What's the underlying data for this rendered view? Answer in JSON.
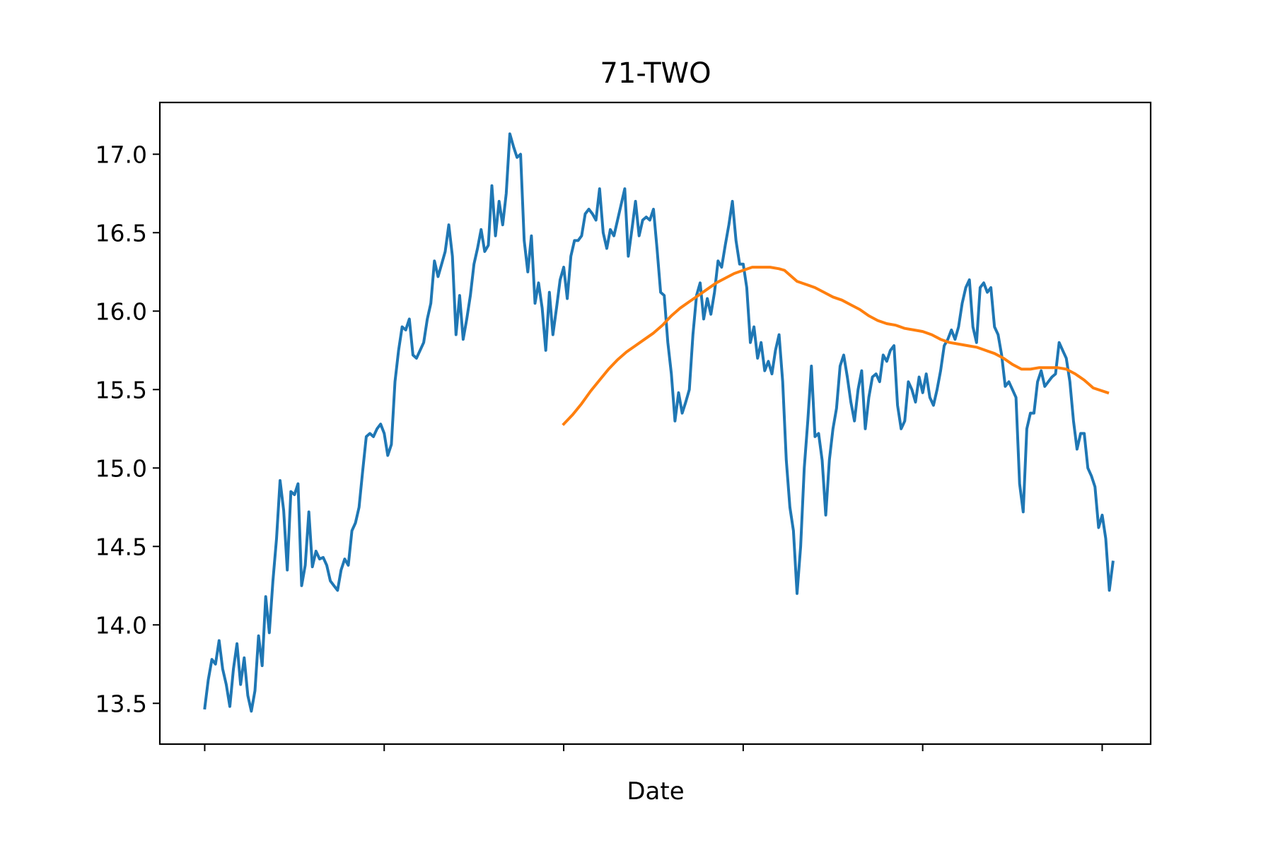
{
  "chart_data": {
    "type": "line",
    "title": "71-TWO",
    "xlabel": "Date",
    "ylabel": "",
    "ylim": [
      13.24,
      17.33
    ],
    "xlim": [
      -25,
      527
    ],
    "y_ticks": [
      {
        "value": 13.5,
        "label": "13.5"
      },
      {
        "value": 14.0,
        "label": "14.0"
      },
      {
        "value": 14.5,
        "label": "14.5"
      },
      {
        "value": 15.0,
        "label": "15.0"
      },
      {
        "value": 15.5,
        "label": "15.5"
      },
      {
        "value": 16.0,
        "label": "16.0"
      },
      {
        "value": 16.5,
        "label": "16.5"
      },
      {
        "value": 17.0,
        "label": "17.0"
      }
    ],
    "x_ticks": [
      0,
      100,
      200,
      300,
      400,
      500
    ],
    "grid": false,
    "colors": {
      "price": "#1f77b4",
      "moving_average": "#ff7f0e"
    },
    "series": [
      {
        "key": "price",
        "color": "#1f77b4",
        "points": [
          [
            0,
            13.47
          ],
          [
            2,
            13.65
          ],
          [
            4,
            13.78
          ],
          [
            6,
            13.75
          ],
          [
            8,
            13.9
          ],
          [
            10,
            13.72
          ],
          [
            12,
            13.62
          ],
          [
            14,
            13.48
          ],
          [
            16,
            13.72
          ],
          [
            18,
            13.88
          ],
          [
            20,
            13.62
          ],
          [
            22,
            13.79
          ],
          [
            24,
            13.55
          ],
          [
            26,
            13.45
          ],
          [
            28,
            13.58
          ],
          [
            30,
            13.93
          ],
          [
            32,
            13.74
          ],
          [
            34,
            14.18
          ],
          [
            36,
            13.95
          ],
          [
            38,
            14.28
          ],
          [
            40,
            14.55
          ],
          [
            42,
            14.92
          ],
          [
            44,
            14.73
          ],
          [
            46,
            14.35
          ],
          [
            48,
            14.85
          ],
          [
            50,
            14.83
          ],
          [
            52,
            14.9
          ],
          [
            54,
            14.25
          ],
          [
            56,
            14.38
          ],
          [
            58,
            14.72
          ],
          [
            60,
            14.37
          ],
          [
            62,
            14.47
          ],
          [
            64,
            14.42
          ],
          [
            66,
            14.43
          ],
          [
            68,
            14.38
          ],
          [
            70,
            14.28
          ],
          [
            72,
            14.25
          ],
          [
            74,
            14.22
          ],
          [
            76,
            14.35
          ],
          [
            78,
            14.42
          ],
          [
            80,
            14.38
          ],
          [
            82,
            14.6
          ],
          [
            84,
            14.65
          ],
          [
            86,
            14.75
          ],
          [
            88,
            14.98
          ],
          [
            90,
            15.2
          ],
          [
            92,
            15.22
          ],
          [
            94,
            15.2
          ],
          [
            96,
            15.25
          ],
          [
            98,
            15.28
          ],
          [
            100,
            15.22
          ],
          [
            102,
            15.08
          ],
          [
            104,
            15.15
          ],
          [
            106,
            15.55
          ],
          [
            108,
            15.75
          ],
          [
            110,
            15.9
          ],
          [
            112,
            15.88
          ],
          [
            114,
            15.95
          ],
          [
            116,
            15.72
          ],
          [
            118,
            15.7
          ],
          [
            120,
            15.75
          ],
          [
            122,
            15.8
          ],
          [
            124,
            15.95
          ],
          [
            126,
            16.05
          ],
          [
            128,
            16.32
          ],
          [
            130,
            16.22
          ],
          [
            132,
            16.3
          ],
          [
            134,
            16.38
          ],
          [
            136,
            16.55
          ],
          [
            138,
            16.35
          ],
          [
            140,
            15.85
          ],
          [
            142,
            16.1
          ],
          [
            144,
            15.82
          ],
          [
            146,
            15.95
          ],
          [
            148,
            16.1
          ],
          [
            150,
            16.3
          ],
          [
            152,
            16.4
          ],
          [
            154,
            16.52
          ],
          [
            156,
            16.38
          ],
          [
            158,
            16.42
          ],
          [
            160,
            16.8
          ],
          [
            162,
            16.48
          ],
          [
            164,
            16.7
          ],
          [
            166,
            16.55
          ],
          [
            168,
            16.75
          ],
          [
            170,
            17.13
          ],
          [
            172,
            17.05
          ],
          [
            174,
            16.98
          ],
          [
            176,
            17.0
          ],
          [
            178,
            16.45
          ],
          [
            180,
            16.25
          ],
          [
            182,
            16.48
          ],
          [
            184,
            16.05
          ],
          [
            186,
            16.18
          ],
          [
            188,
            16.02
          ],
          [
            190,
            15.75
          ],
          [
            192,
            16.12
          ],
          [
            194,
            15.85
          ],
          [
            196,
            16.02
          ],
          [
            198,
            16.2
          ],
          [
            200,
            16.28
          ],
          [
            202,
            16.08
          ],
          [
            204,
            16.35
          ],
          [
            206,
            16.45
          ],
          [
            208,
            16.45
          ],
          [
            210,
            16.48
          ],
          [
            212,
            16.62
          ],
          [
            214,
            16.65
          ],
          [
            216,
            16.62
          ],
          [
            218,
            16.58
          ],
          [
            220,
            16.78
          ],
          [
            222,
            16.5
          ],
          [
            224,
            16.4
          ],
          [
            226,
            16.52
          ],
          [
            228,
            16.48
          ],
          [
            230,
            16.58
          ],
          [
            232,
            16.68
          ],
          [
            234,
            16.78
          ],
          [
            236,
            16.35
          ],
          [
            238,
            16.52
          ],
          [
            240,
            16.7
          ],
          [
            242,
            16.48
          ],
          [
            244,
            16.58
          ],
          [
            246,
            16.6
          ],
          [
            248,
            16.58
          ],
          [
            250,
            16.65
          ],
          [
            252,
            16.4
          ],
          [
            254,
            16.12
          ],
          [
            256,
            16.1
          ],
          [
            258,
            15.8
          ],
          [
            260,
            15.6
          ],
          [
            262,
            15.3
          ],
          [
            264,
            15.48
          ],
          [
            266,
            15.35
          ],
          [
            268,
            15.42
          ],
          [
            270,
            15.5
          ],
          [
            272,
            15.85
          ],
          [
            274,
            16.1
          ],
          [
            276,
            16.18
          ],
          [
            278,
            15.95
          ],
          [
            280,
            16.08
          ],
          [
            282,
            15.98
          ],
          [
            284,
            16.12
          ],
          [
            286,
            16.32
          ],
          [
            288,
            16.28
          ],
          [
            290,
            16.42
          ],
          [
            292,
            16.55
          ],
          [
            294,
            16.7
          ],
          [
            296,
            16.45
          ],
          [
            298,
            16.3
          ],
          [
            300,
            16.3
          ],
          [
            302,
            16.15
          ],
          [
            304,
            15.8
          ],
          [
            306,
            15.9
          ],
          [
            308,
            15.7
          ],
          [
            310,
            15.8
          ],
          [
            312,
            15.62
          ],
          [
            314,
            15.68
          ],
          [
            316,
            15.6
          ],
          [
            318,
            15.75
          ],
          [
            320,
            15.85
          ],
          [
            322,
            15.55
          ],
          [
            324,
            15.05
          ],
          [
            326,
            14.75
          ],
          [
            328,
            14.6
          ],
          [
            330,
            14.2
          ],
          [
            332,
            14.5
          ],
          [
            334,
            15.0
          ],
          [
            336,
            15.3
          ],
          [
            338,
            15.65
          ],
          [
            340,
            15.2
          ],
          [
            342,
            15.22
          ],
          [
            344,
            15.05
          ],
          [
            346,
            14.7
          ],
          [
            348,
            15.05
          ],
          [
            350,
            15.25
          ],
          [
            352,
            15.38
          ],
          [
            354,
            15.65
          ],
          [
            356,
            15.72
          ],
          [
            358,
            15.58
          ],
          [
            360,
            15.42
          ],
          [
            362,
            15.3
          ],
          [
            364,
            15.5
          ],
          [
            366,
            15.62
          ],
          [
            368,
            15.25
          ],
          [
            370,
            15.45
          ],
          [
            372,
            15.58
          ],
          [
            374,
            15.6
          ],
          [
            376,
            15.55
          ],
          [
            378,
            15.72
          ],
          [
            380,
            15.68
          ],
          [
            382,
            15.75
          ],
          [
            384,
            15.78
          ],
          [
            386,
            15.4
          ],
          [
            388,
            15.25
          ],
          [
            390,
            15.3
          ],
          [
            392,
            15.55
          ],
          [
            394,
            15.5
          ],
          [
            396,
            15.42
          ],
          [
            398,
            15.58
          ],
          [
            400,
            15.48
          ],
          [
            402,
            15.6
          ],
          [
            404,
            15.45
          ],
          [
            406,
            15.4
          ],
          [
            408,
            15.5
          ],
          [
            410,
            15.62
          ],
          [
            412,
            15.78
          ],
          [
            414,
            15.82
          ],
          [
            416,
            15.88
          ],
          [
            418,
            15.82
          ],
          [
            420,
            15.9
          ],
          [
            422,
            16.05
          ],
          [
            424,
            16.15
          ],
          [
            426,
            16.2
          ],
          [
            428,
            15.9
          ],
          [
            430,
            15.8
          ],
          [
            432,
            16.15
          ],
          [
            434,
            16.18
          ],
          [
            436,
            16.12
          ],
          [
            438,
            16.15
          ],
          [
            440,
            15.9
          ],
          [
            442,
            15.85
          ],
          [
            444,
            15.72
          ],
          [
            446,
            15.52
          ],
          [
            448,
            15.55
          ],
          [
            450,
            15.5
          ],
          [
            452,
            15.45
          ],
          [
            454,
            14.9
          ],
          [
            456,
            14.72
          ],
          [
            458,
            15.25
          ],
          [
            460,
            15.35
          ],
          [
            462,
            15.35
          ],
          [
            464,
            15.55
          ],
          [
            466,
            15.62
          ],
          [
            468,
            15.52
          ],
          [
            470,
            15.55
          ],
          [
            472,
            15.58
          ],
          [
            474,
            15.6
          ],
          [
            476,
            15.8
          ],
          [
            478,
            15.75
          ],
          [
            480,
            15.7
          ],
          [
            482,
            15.55
          ],
          [
            484,
            15.3
          ],
          [
            486,
            15.12
          ],
          [
            488,
            15.22
          ],
          [
            490,
            15.22
          ],
          [
            492,
            15.0
          ],
          [
            494,
            14.95
          ],
          [
            496,
            14.88
          ],
          [
            498,
            14.62
          ],
          [
            500,
            14.7
          ],
          [
            502,
            14.55
          ],
          [
            504,
            14.22
          ],
          [
            506,
            14.4
          ]
        ]
      },
      {
        "key": "moving_average",
        "color": "#ff7f0e",
        "points": [
          [
            200,
            15.28
          ],
          [
            205,
            15.34
          ],
          [
            210,
            15.41
          ],
          [
            215,
            15.49
          ],
          [
            220,
            15.56
          ],
          [
            225,
            15.63
          ],
          [
            230,
            15.69
          ],
          [
            235,
            15.74
          ],
          [
            240,
            15.78
          ],
          [
            245,
            15.82
          ],
          [
            250,
            15.86
          ],
          [
            255,
            15.91
          ],
          [
            260,
            15.97
          ],
          [
            265,
            16.02
          ],
          [
            270,
            16.06
          ],
          [
            275,
            16.1
          ],
          [
            280,
            16.14
          ],
          [
            285,
            16.18
          ],
          [
            290,
            16.21
          ],
          [
            295,
            16.24
          ],
          [
            300,
            16.26
          ],
          [
            305,
            16.28
          ],
          [
            310,
            16.28
          ],
          [
            315,
            16.28
          ],
          [
            320,
            16.27
          ],
          [
            323,
            16.26
          ],
          [
            326,
            16.23
          ],
          [
            330,
            16.19
          ],
          [
            335,
            16.17
          ],
          [
            340,
            16.15
          ],
          [
            345,
            16.12
          ],
          [
            350,
            16.09
          ],
          [
            355,
            16.07
          ],
          [
            360,
            16.04
          ],
          [
            365,
            16.01
          ],
          [
            370,
            15.97
          ],
          [
            375,
            15.94
          ],
          [
            380,
            15.92
          ],
          [
            385,
            15.91
          ],
          [
            390,
            15.89
          ],
          [
            395,
            15.88
          ],
          [
            400,
            15.87
          ],
          [
            405,
            15.85
          ],
          [
            410,
            15.82
          ],
          [
            415,
            15.8
          ],
          [
            420,
            15.79
          ],
          [
            425,
            15.78
          ],
          [
            430,
            15.77
          ],
          [
            435,
            15.75
          ],
          [
            440,
            15.73
          ],
          [
            445,
            15.7
          ],
          [
            450,
            15.66
          ],
          [
            455,
            15.63
          ],
          [
            460,
            15.63
          ],
          [
            465,
            15.64
          ],
          [
            470,
            15.64
          ],
          [
            475,
            15.64
          ],
          [
            480,
            15.63
          ],
          [
            485,
            15.6
          ],
          [
            490,
            15.56
          ],
          [
            495,
            15.51
          ],
          [
            503,
            15.48
          ]
        ]
      }
    ]
  }
}
